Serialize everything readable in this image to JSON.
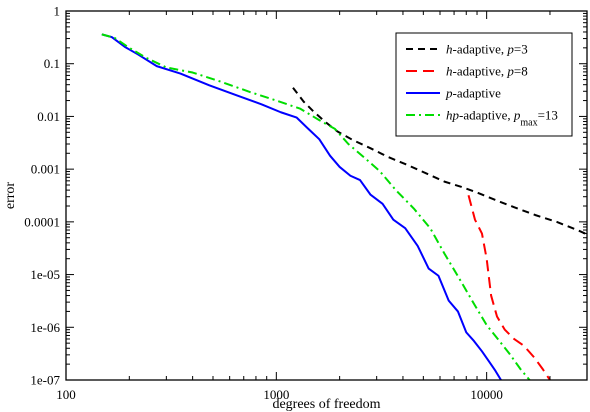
{
  "chart_data": {
    "type": "line",
    "title": "",
    "xlabel": "degrees of freedom",
    "ylabel": "error",
    "xscale": "log",
    "yscale": "log",
    "xlim": [
      100,
      30000
    ],
    "ylim": [
      1e-07,
      1
    ],
    "x_ticks": [
      {
        "value": 100,
        "label": "100"
      },
      {
        "value": 1000,
        "label": "1000"
      },
      {
        "value": 10000,
        "label": "10000"
      }
    ],
    "y_ticks": [
      {
        "value": 1,
        "label": "1"
      },
      {
        "value": 0.1,
        "label": "0.1"
      },
      {
        "value": 0.01,
        "label": "0.01"
      },
      {
        "value": 0.001,
        "label": "0.001"
      },
      {
        "value": 0.0001,
        "label": "0.0001"
      },
      {
        "value": 1e-05,
        "label": "1e-05"
      },
      {
        "value": 1e-06,
        "label": "1e-06"
      },
      {
        "value": 1e-07,
        "label": "1e-07"
      }
    ],
    "grid": false,
    "legend_position": "top-right",
    "series": [
      {
        "legend": [
          {
            "text": "h",
            "italic": true
          },
          {
            "text": "-adaptive, "
          },
          {
            "text": "p",
            "italic": true
          },
          {
            "text": "=3"
          }
        ],
        "color": "#000000",
        "dash": "dash",
        "points": [
          [
            1200,
            0.035
          ],
          [
            1350,
            0.019
          ],
          [
            1500,
            0.0125
          ],
          [
            1700,
            0.008
          ],
          [
            1950,
            0.0052
          ],
          [
            2300,
            0.0036
          ],
          [
            2800,
            0.0025
          ],
          [
            3400,
            0.0017
          ],
          [
            4200,
            0.0012
          ],
          [
            5200,
            0.00082
          ],
          [
            6300,
            0.00058
          ],
          [
            7600,
            0.00046
          ],
          [
            9000,
            0.00036
          ],
          [
            11000,
            0.00026
          ],
          [
            13500,
            0.00019
          ],
          [
            17000,
            0.000135
          ],
          [
            21500,
            0.0001
          ],
          [
            27000,
            7e-05
          ],
          [
            30000,
            5.8e-05
          ]
        ]
      },
      {
        "legend": [
          {
            "text": "h",
            "italic": true
          },
          {
            "text": "-adaptive, "
          },
          {
            "text": "p",
            "italic": true
          },
          {
            "text": "=8"
          }
        ],
        "color": "#ff0000",
        "dash": "longdash",
        "points": [
          [
            8200,
            0.00032
          ],
          [
            8800,
            0.00011
          ],
          [
            9500,
            6e-05
          ],
          [
            10000,
            2e-05
          ],
          [
            10500,
            4e-06
          ],
          [
            11200,
            1.6e-06
          ],
          [
            12200,
            9e-07
          ],
          [
            13500,
            6e-07
          ],
          [
            15000,
            4.5e-07
          ],
          [
            16800,
            2.7e-07
          ],
          [
            18500,
            1.6e-07
          ],
          [
            20000,
            1e-07
          ]
        ]
      },
      {
        "legend": [
          {
            "text": "p",
            "italic": true
          },
          {
            "text": "-adaptive"
          }
        ],
        "color": "#0000ff",
        "dash": "solid",
        "points": [
          [
            148,
            0.36
          ],
          [
            165,
            0.32
          ],
          [
            190,
            0.21
          ],
          [
            220,
            0.15
          ],
          [
            270,
            0.09
          ],
          [
            350,
            0.065
          ],
          [
            480,
            0.039
          ],
          [
            650,
            0.025
          ],
          [
            850,
            0.017
          ],
          [
            1050,
            0.012
          ],
          [
            1250,
            0.0095
          ],
          [
            1420,
            0.0058
          ],
          [
            1600,
            0.0037
          ],
          [
            1800,
            0.0018
          ],
          [
            2000,
            0.0011
          ],
          [
            2250,
            0.00075
          ],
          [
            2500,
            0.00062
          ],
          [
            2800,
            0.00033
          ],
          [
            3200,
            0.00022
          ],
          [
            3600,
            0.00011
          ],
          [
            4100,
            7.6e-05
          ],
          [
            4700,
            3.5e-05
          ],
          [
            5300,
            1.3e-05
          ],
          [
            5900,
            9.5e-06
          ],
          [
            6600,
            3.2e-06
          ],
          [
            7300,
            2e-06
          ],
          [
            8000,
            8e-07
          ],
          [
            8700,
            5.5e-07
          ],
          [
            9500,
            3.5e-07
          ],
          [
            10300,
            2.2e-07
          ],
          [
            11000,
            1.5e-07
          ],
          [
            11700,
            1e-07
          ]
        ]
      },
      {
        "legend": [
          {
            "text": "hp",
            "italic": true
          },
          {
            "text": "-adaptive, "
          },
          {
            "text": "p",
            "italic": true
          },
          {
            "text": "max",
            "sub": true
          },
          {
            "text": "=13"
          }
        ],
        "color": "#00dd00",
        "dash": "dashdot",
        "points": [
          [
            148,
            0.36
          ],
          [
            170,
            0.31
          ],
          [
            200,
            0.2
          ],
          [
            240,
            0.13
          ],
          [
            300,
            0.085
          ],
          [
            400,
            0.068
          ],
          [
            550,
            0.045
          ],
          [
            750,
            0.029
          ],
          [
            1000,
            0.02
          ],
          [
            1300,
            0.014
          ],
          [
            1600,
            0.0085
          ],
          [
            1900,
            0.0058
          ],
          [
            2200,
            0.003
          ],
          [
            2600,
            0.0017
          ],
          [
            3100,
            0.00092
          ],
          [
            3700,
            0.0004
          ],
          [
            4500,
            0.00018
          ],
          [
            5400,
            7.5e-05
          ],
          [
            6300,
            2.5e-05
          ],
          [
            7400,
            8.5e-06
          ],
          [
            8700,
            2.8e-06
          ],
          [
            10000,
            1.1e-06
          ],
          [
            11300,
            6e-07
          ],
          [
            12800,
            3.2e-07
          ],
          [
            14500,
            1.6e-07
          ],
          [
            16000,
            1e-07
          ]
        ]
      }
    ]
  }
}
